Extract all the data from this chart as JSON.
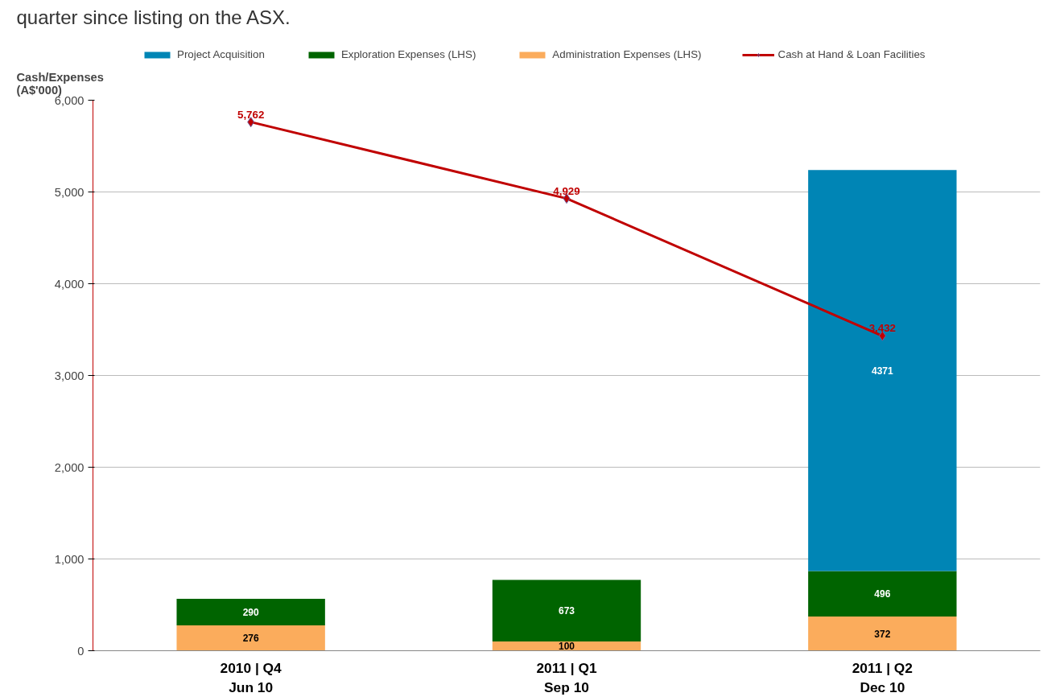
{
  "chart_data": {
    "type": "bar",
    "stacked": true,
    "annotations": [
      "quarter since listing on the ASX."
    ],
    "ylabel": "Cash/Expenses\n(A$'000)",
    "categories": [
      "2010 | Q4\nJun 10",
      "2011 | Q1\nSep 10",
      "2011 | Q2\nDec 10"
    ],
    "ylim": [
      0,
      6000
    ],
    "yticks": [
      {
        "value": 0,
        "label": "0"
      },
      {
        "value": 1000,
        "label": "1,000"
      },
      {
        "value": 2000,
        "label": "2,000"
      },
      {
        "value": 3000,
        "label": "3,000"
      },
      {
        "value": 4000,
        "label": "4,000"
      },
      {
        "value": 5000,
        "label": "5,000"
      },
      {
        "value": 6000,
        "label": "6,000"
      }
    ],
    "grid": "y",
    "legend": "top",
    "series": [
      {
        "name": "Administration Expenses (LHS)",
        "color": "#fbac5c",
        "values": [
          276,
          100,
          372
        ],
        "value_labels": [
          "276",
          "100",
          "372"
        ]
      },
      {
        "name": "Exploration Expenses (LHS)",
        "color": "#006400",
        "values": [
          290,
          673,
          496
        ],
        "value_labels": [
          "290",
          "673",
          "496"
        ]
      },
      {
        "name": "Project Acquisition",
        "color": "#0085b5",
        "values": [
          null,
          null,
          4371
        ],
        "value_labels": [
          null,
          null,
          "4371"
        ]
      },
      {
        "name": "Cash at Hand & Loan Facilities",
        "type": "line",
        "color": "#c00000",
        "marker": "diamond",
        "values": [
          5762,
          4929,
          3432
        ],
        "value_labels": [
          "5,762",
          "4,929",
          "3,432"
        ]
      }
    ]
  }
}
